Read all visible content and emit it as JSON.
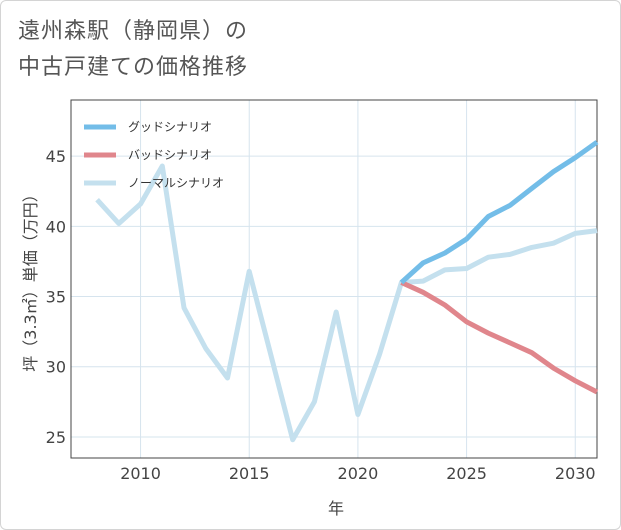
{
  "title": {
    "line1": "遠州森駅（静岡県）の",
    "line2": "中古戸建ての価格推移"
  },
  "chart_data": {
    "type": "line",
    "title": "遠州森駅（静岡県）の中古戸建ての価格推移",
    "xlabel": "年",
    "ylabel": "坪（3.3㎡）単価（万円）",
    "xlim": [
      2006.8,
      2031
    ],
    "ylim": [
      23.5,
      49
    ],
    "xticks": [
      2010,
      2015,
      2020,
      2025,
      2030
    ],
    "yticks": [
      25,
      30,
      35,
      40,
      45
    ],
    "grid": true,
    "legend_position": "top-left",
    "series": [
      {
        "name": "グッドシナリオ",
        "color": "#73bde8",
        "x": [
          2022,
          2023,
          2024,
          2025,
          2026,
          2027,
          2028,
          2029,
          2030,
          2031
        ],
        "y": [
          36.0,
          37.4,
          38.1,
          39.1,
          40.7,
          41.5,
          42.7,
          43.9,
          44.9,
          46.0
        ]
      },
      {
        "name": "バッドシナリオ",
        "color": "#e0868c",
        "x": [
          2022,
          2023,
          2024,
          2025,
          2026,
          2027,
          2028,
          2029,
          2030,
          2031
        ],
        "y": [
          36.0,
          35.3,
          34.4,
          33.2,
          32.4,
          31.7,
          31.0,
          29.9,
          29.0,
          28.2
        ]
      },
      {
        "name": "ノーマルシナリオ",
        "color": "#c4e0ee",
        "x": [
          2008,
          2009,
          2010,
          2011,
          2012,
          2013,
          2014,
          2015,
          2016,
          2017,
          2018,
          2019,
          2020,
          2021,
          2022,
          2023,
          2024,
          2025,
          2026,
          2027,
          2028,
          2029,
          2030,
          2031
        ],
        "y": [
          41.9,
          40.2,
          41.6,
          44.3,
          34.2,
          31.3,
          29.2,
          36.8,
          30.8,
          24.8,
          27.5,
          33.9,
          26.6,
          30.9,
          36.0,
          36.1,
          36.9,
          37.0,
          37.8,
          38.0,
          38.5,
          38.8,
          39.5,
          39.7
        ]
      }
    ]
  }
}
